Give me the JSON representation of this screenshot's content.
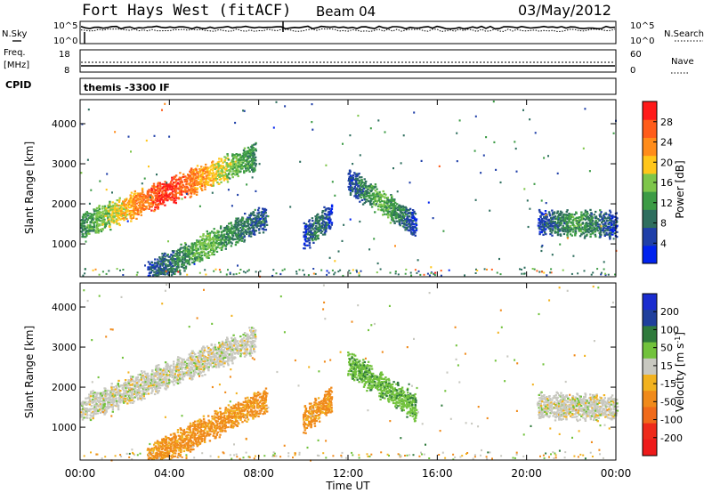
{
  "header": {
    "site": "Fort Hays West (fitACF)",
    "beam": "Beam 04",
    "date": "03/May/2012"
  },
  "summary": {
    "nsky_label": "N.Sky",
    "nsearch_label": "N.Search",
    "freq_label_1": "Freq.",
    "freq_label_2": "[MHz]",
    "nave_label": "Nave",
    "cpid_label": "CPID",
    "cpid_value": "themis -3300 IF",
    "noise_ticks_left": [
      "10^5",
      "10^0"
    ],
    "noise_ticks_right": [
      "10^5",
      "10^0"
    ],
    "freq_ticks": [
      "18",
      "8"
    ],
    "nave_ticks": [
      "60",
      "0"
    ]
  },
  "colors": {
    "power_scale": [
      "#0022ee",
      "#1f3fa8",
      "#2e6e5e",
      "#3c9b45",
      "#7ec64a",
      "#ffc61a",
      "#ff8c1a",
      "#ff5c1a",
      "#ff1a1a"
    ],
    "velocity_scale": [
      "#1a2ccf",
      "#1f3f9c",
      "#2f7a3c",
      "#72c23c",
      "#c8c8c0",
      "#f2b21f",
      "#f08a1a",
      "#f06a1a",
      "#ee2a1a",
      "#ee1a1a"
    ]
  },
  "chart_data": [
    {
      "type": "heatmap",
      "title": "Power",
      "xlabel": "Time UT",
      "ylabel": "Slant Range [km]",
      "x_ticks": [
        "00:00",
        "04:00",
        "08:00",
        "12:00",
        "16:00",
        "20:00",
        "00:00"
      ],
      "y_ticks": [
        "1000",
        "2000",
        "3000",
        "4000"
      ],
      "xlim_hours": [
        0,
        24
      ],
      "ylim_km": [
        180,
        4600
      ],
      "colorbar": {
        "label": "Power [dB]",
        "ticks": [
          "28",
          "24",
          "20",
          "16",
          "12",
          "8",
          "4"
        ],
        "range": [
          0,
          30
        ]
      },
      "features": [
        {
          "name": "main echo band",
          "t_start_h": 0.0,
          "t_end_h": 7.8,
          "range_start_km": 1450,
          "range_end_km": 3200,
          "power_peak_db": 28
        },
        {
          "name": "lower echo band",
          "t_start_h": 3.0,
          "t_end_h": 8.3,
          "range_start_km": 250,
          "range_end_km": 1700,
          "power_peak_db": 14
        },
        {
          "name": "midnight cluster",
          "t_start_h": 10.0,
          "t_end_h": 11.2,
          "range_start_km": 1200,
          "range_end_km": 1700,
          "power_peak_db": 10
        },
        {
          "name": "post-noon arcs",
          "t_start_h": 12.0,
          "t_end_h": 15.0,
          "range_start_km": 2600,
          "range_end_km": 1500,
          "power_peak_db": 14
        },
        {
          "name": "late echoes",
          "t_start_h": 20.5,
          "t_end_h": 24.0,
          "range_start_km": 1550,
          "range_end_km": 1500,
          "power_peak_db": 12
        }
      ]
    },
    {
      "type": "heatmap",
      "title": "Velocity",
      "xlabel": "Time UT",
      "ylabel": "Slant Range [km]",
      "x_ticks": [
        "00:00",
        "04:00",
        "08:00",
        "12:00",
        "16:00",
        "20:00",
        "00:00"
      ],
      "y_ticks": [
        "1000",
        "2000",
        "3000",
        "4000"
      ],
      "xlim_hours": [
        0,
        24
      ],
      "ylim_km": [
        180,
        4600
      ],
      "colorbar": {
        "label": "Velocity [m s-1]",
        "ticks": [
          "200",
          "100",
          "50",
          "15",
          "-15",
          "-50",
          "-100",
          "-200"
        ],
        "range": [
          -250,
          250
        ]
      },
      "features": [
        {
          "name": "main echo band",
          "t_start_h": 0.0,
          "t_end_h": 7.8,
          "range_start_km": 1450,
          "range_end_km": 3200,
          "velocity_ms": 0
        },
        {
          "name": "lower echo band",
          "t_start_h": 3.0,
          "t_end_h": 8.3,
          "range_start_km": 250,
          "range_end_km": 1700,
          "velocity_ms": -60
        },
        {
          "name": "midnight cluster",
          "t_start_h": 10.0,
          "t_end_h": 11.2,
          "range_start_km": 1200,
          "range_end_km": 1700,
          "velocity_ms": -60
        },
        {
          "name": "post-noon arcs",
          "t_start_h": 12.0,
          "t_end_h": 15.0,
          "range_start_km": 2600,
          "range_end_km": 1500,
          "velocity_ms": 40
        },
        {
          "name": "late echoes",
          "t_start_h": 20.5,
          "t_end_h": 24.0,
          "range_start_km": 1550,
          "range_end_km": 1500,
          "velocity_ms": 0
        }
      ]
    }
  ]
}
